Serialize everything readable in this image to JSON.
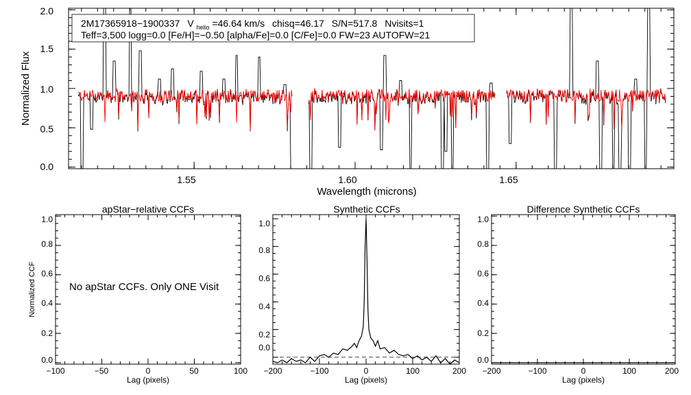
{
  "header": {
    "star_id": "2M17365918−1900337",
    "vhelio_label": "V",
    "vhelio_sub": "helio",
    "vhelio_value": "=46.64 km/s",
    "chisq": "chisq=46.17",
    "snr": "S/N=517.8",
    "nvisits": "Nvisits=1",
    "params_line": "Teff=3,500 logg=0.0 [Fe/H]=−0.50 [alpha/Fe]=0.0 [C/Fe]=0.0 FW=23 AUTOFW=21"
  },
  "no_ccf_message": "No apStar CCFs.  Only ONE Visit",
  "colors": {
    "observed": "#000000",
    "synthetic": "#ff0000",
    "frame": "#000000"
  },
  "chart_data": [
    {
      "id": "spectrum",
      "type": "line",
      "title": "",
      "xlabel": "Wavelength (microns)",
      "ylabel": "Normalized Flux",
      "xlim": [
        1.511,
        1.699
      ],
      "ylim": [
        -0.02,
        2.02
      ],
      "xticks": [
        1.55,
        1.6,
        1.65
      ],
      "xtick_labels": [
        "1.55",
        "1.60",
        "1.65"
      ],
      "yticks": [
        0.0,
        0.5,
        1.0,
        1.5,
        2.0
      ],
      "ytick_labels": [
        "0.0",
        "0.5",
        "1.0",
        "1.5",
        "2.0"
      ],
      "chips": [
        [
          1.514,
          1.5805
        ],
        [
          1.5855,
          1.6435
        ],
        [
          1.647,
          1.6965
        ]
      ],
      "continuum": 0.93,
      "noise_amplitude": 0.08,
      "series": [
        {
          "name": "observed spectrum",
          "color": "#000000"
        },
        {
          "name": "synthetic fit",
          "color": "#ff0000"
        }
      ],
      "emission_spikes": [
        [
          1.5182,
          1.35
        ],
        [
          1.5222,
          2.02
        ],
        [
          1.5252,
          1.35
        ],
        [
          1.5302,
          2.02
        ],
        [
          1.5332,
          1.48
        ],
        [
          1.5392,
          1.12
        ],
        [
          1.5432,
          1.25
        ],
        [
          1.5522,
          1.22
        ],
        [
          1.5592,
          1.12
        ],
        [
          1.5632,
          1.42
        ],
        [
          1.5702,
          1.4
        ],
        [
          1.5782,
          1.05
        ],
        [
          1.6092,
          1.42
        ],
        [
          1.6142,
          1.1
        ],
        [
          1.6422,
          1.07
        ],
        [
          1.6622,
          1.28
        ],
        [
          1.6672,
          2.02
        ],
        [
          1.6752,
          1.35
        ],
        [
          1.6872,
          1.12
        ],
        [
          1.6912,
          2.02
        ]
      ],
      "absorption_dips": [
        [
          1.5152,
          -0.02
        ],
        [
          1.5182,
          0.48
        ],
        [
          1.5802,
          -0.02
        ],
        [
          1.5812,
          -0.02
        ],
        [
          1.5862,
          -0.02
        ],
        [
          1.5952,
          0.25
        ],
        [
          1.6082,
          0.22
        ],
        [
          1.6172,
          -0.02
        ],
        [
          1.6272,
          -0.02
        ],
        [
          1.6282,
          0.2
        ],
        [
          1.6302,
          -0.02
        ],
        [
          1.6412,
          -0.02
        ],
        [
          1.6482,
          0.3
        ],
        [
          1.6622,
          -0.02
        ],
        [
          1.6762,
          -0.02
        ],
        [
          1.6802,
          -0.02
        ],
        [
          1.6822,
          -0.02
        ],
        [
          1.6852,
          -0.02
        ],
        [
          1.6902,
          -0.02
        ]
      ]
    },
    {
      "id": "apstar_ccf",
      "type": "line",
      "title": "apStar−relative CCFs",
      "xlabel": "Lag (pixels)",
      "ylabel": "Normalized CCF",
      "xlim": [
        -100,
        100
      ],
      "ylim": [
        -0.01,
        1.01
      ],
      "xticks": [
        -100,
        -50,
        0,
        50,
        100
      ],
      "xtick_labels": [
        "−100",
        "−50",
        "0",
        "50",
        "100"
      ],
      "yticks": [
        0.0,
        0.2,
        0.4,
        0.6,
        0.8,
        1.0
      ],
      "ytick_labels": [
        "0.0",
        "0.2",
        "0.4",
        "0.6",
        "0.8",
        "1.0"
      ],
      "series": []
    },
    {
      "id": "synthetic_ccf",
      "type": "line",
      "title": "Synthetic CCFs",
      "xlabel": "Lag (pixels)",
      "ylabel": "",
      "xlim": [
        -200,
        200
      ],
      "ylim": [
        -0.05,
        1.03
      ],
      "xticks": [
        -200,
        -100,
        0,
        100,
        200
      ],
      "xtick_labels": [
        "−200",
        "−100",
        "0",
        "100",
        "200"
      ],
      "yticks": [
        0.0,
        0.2,
        0.4,
        0.6,
        0.8,
        1.0
      ],
      "ytick_labels": [
        "0.0",
        "0.2",
        "0.4",
        "0.6",
        "0.8",
        "1.0"
      ],
      "zero_line": 0.0,
      "series": [
        {
          "name": "synthetic CCF",
          "x": [
            -200,
            -190,
            -180,
            -170,
            -160,
            -150,
            -140,
            -130,
            -120,
            -110,
            -100,
            -90,
            -80,
            -70,
            -60,
            -50,
            -40,
            -30,
            -25,
            -20,
            -15,
            -10,
            -6,
            -4,
            -2,
            0,
            2,
            4,
            6,
            10,
            15,
            20,
            25,
            30,
            40,
            50,
            60,
            70,
            80,
            90,
            100,
            110,
            120,
            130,
            140,
            150,
            160,
            170,
            180,
            190,
            200
          ],
          "y": [
            -0.03,
            -0.04,
            -0.02,
            -0.04,
            -0.01,
            -0.03,
            -0.02,
            -0.04,
            0.0,
            -0.03,
            0.01,
            0.02,
            0.0,
            0.03,
            0.02,
            0.06,
            0.05,
            0.08,
            0.1,
            0.07,
            0.12,
            0.15,
            0.22,
            0.4,
            0.8,
            1.0,
            0.7,
            0.35,
            0.2,
            0.14,
            0.12,
            0.08,
            0.12,
            0.06,
            0.07,
            0.03,
            0.05,
            0.02,
            0.01,
            0.02,
            -0.01,
            0.01,
            -0.02,
            0.0,
            -0.03,
            0.01,
            -0.04,
            -0.01,
            -0.05,
            -0.02,
            -0.04
          ]
        }
      ]
    },
    {
      "id": "difference_ccf",
      "type": "line",
      "title": "Difference Synthetic CCFs",
      "xlabel": "Lag (pixels)",
      "ylabel": "",
      "xlim": [
        -200,
        200
      ],
      "ylim": [
        -0.01,
        1.01
      ],
      "xticks": [
        -200,
        -100,
        0,
        100,
        200
      ],
      "xtick_labels": [
        "−200",
        "−100",
        "0",
        "100",
        "200"
      ],
      "yticks": [
        0.0,
        0.2,
        0.4,
        0.6,
        0.8,
        1.0
      ],
      "ytick_labels": [
        "0.0",
        "0.2",
        "0.4",
        "0.6",
        "0.8",
        "1.0"
      ],
      "series": [
        {
          "name": "difference CCF",
          "x": [
            -200,
            200
          ],
          "y": [
            0.0,
            0.0
          ]
        }
      ]
    }
  ]
}
